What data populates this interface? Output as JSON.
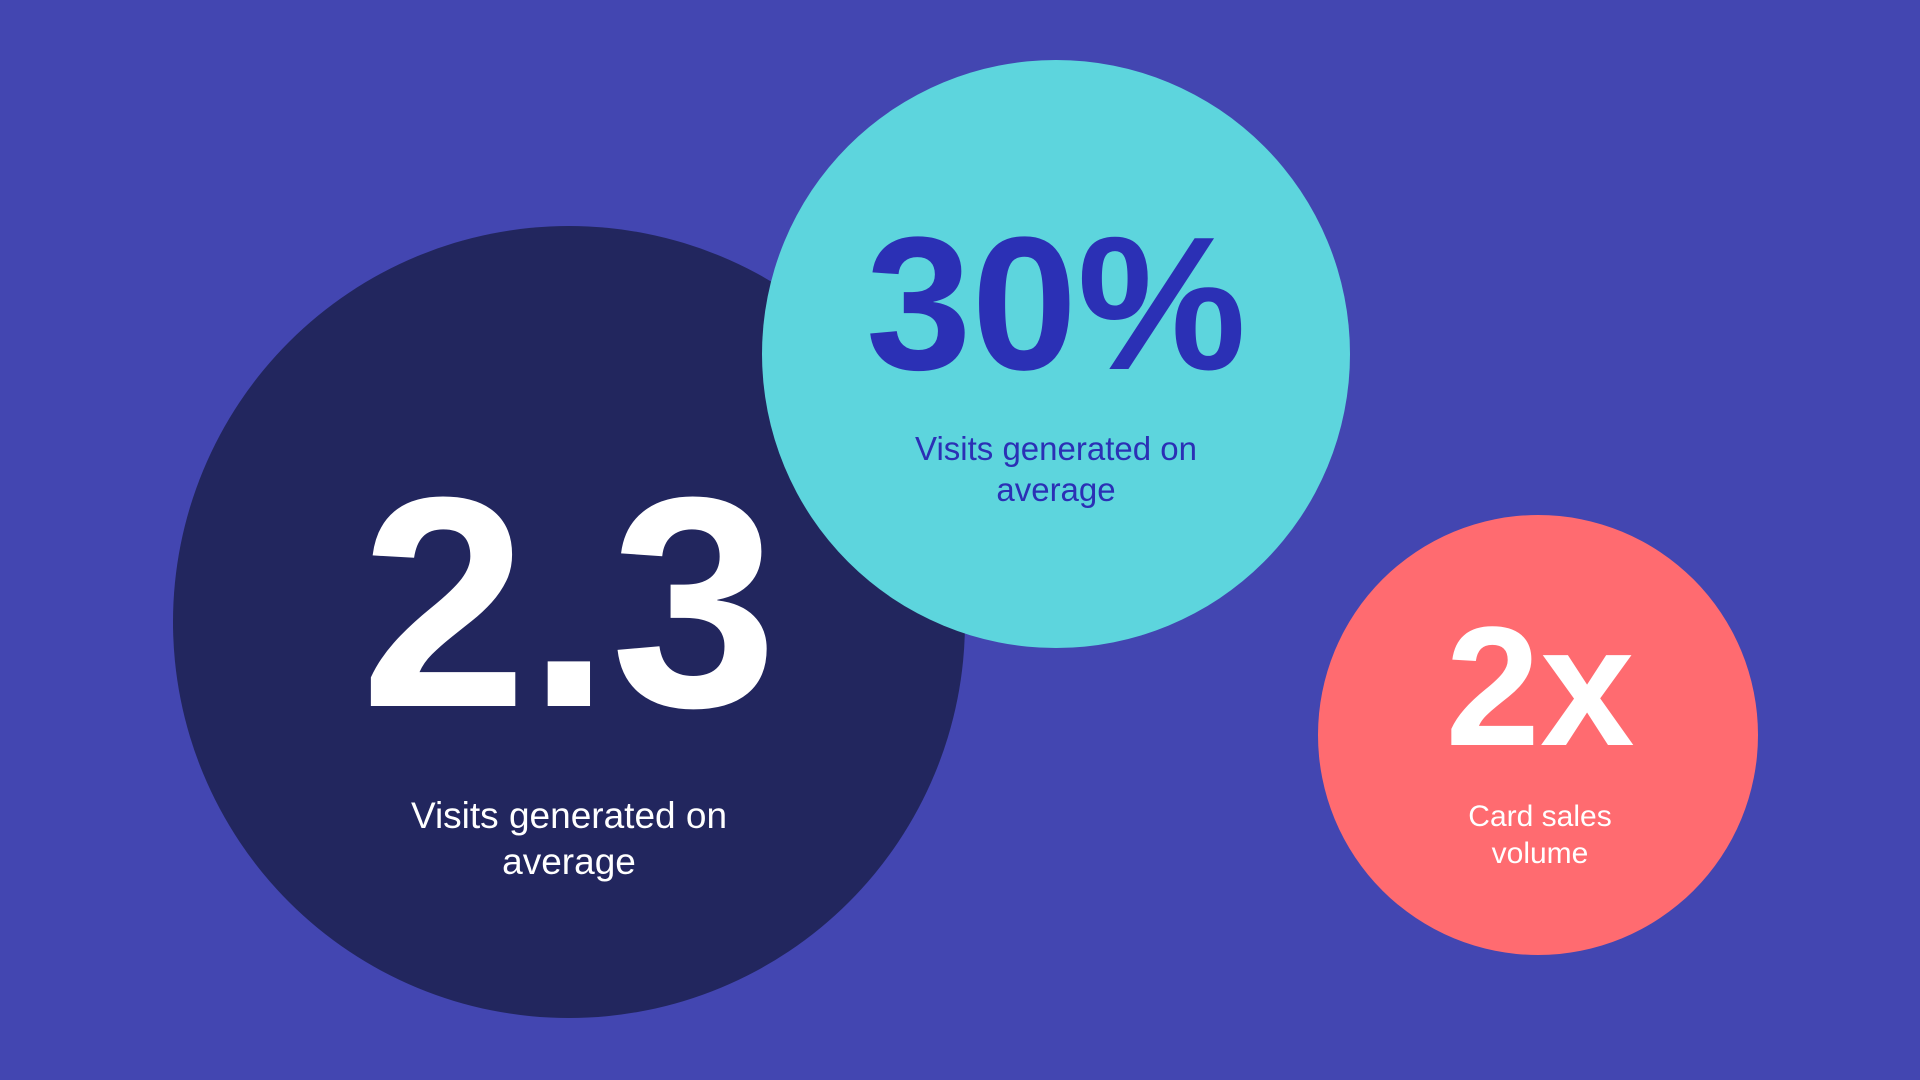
{
  "colors": {
    "background": "#4346b1",
    "navy": "#22265e",
    "cyan": "#5dd5dd",
    "coral": "#ff6b70",
    "blue_text": "#2b30b5",
    "white": "#ffffff"
  },
  "stats": [
    {
      "value": "2.3",
      "label": "Visits generated on average"
    },
    {
      "value": "30%",
      "label": "Visits generated on average"
    },
    {
      "value": "2x",
      "label": "Card sales volume"
    }
  ]
}
